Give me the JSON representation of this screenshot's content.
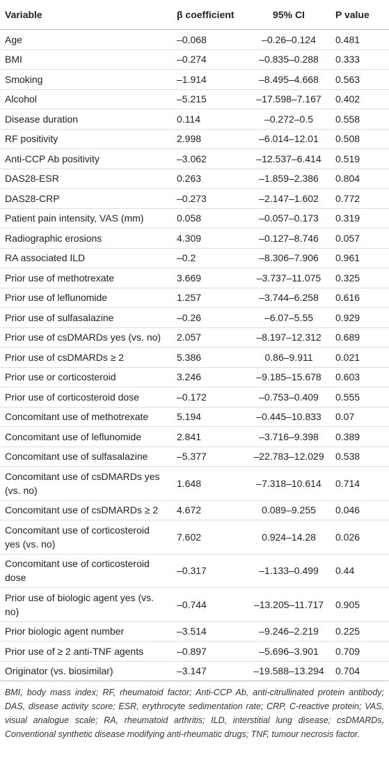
{
  "table": {
    "header": [
      "Variable",
      "β coefficient",
      "95% CI",
      "P value"
    ],
    "rows": [
      [
        "Age",
        "–0.068",
        "–0.26–0.124",
        "0.481"
      ],
      [
        "BMI",
        "–0.274",
        "–0.835–0.288",
        "0.333"
      ],
      [
        "Smoking",
        "–1.914",
        "–8.495–4.668",
        "0.563"
      ],
      [
        "Alcohol",
        "–5.215",
        "–17.598–7.167",
        "0.402"
      ],
      [
        "Disease duration",
        "0.114",
        "–0.272–0.5",
        "0.558"
      ],
      [
        "RF positivity",
        "2.998",
        "–6.014–12.01",
        "0.508"
      ],
      [
        "Anti-CCP Ab positivity",
        "–3.062",
        "–12.537–6.414",
        "0.519"
      ],
      [
        "DAS28-ESR",
        "0.263",
        "–1.859–2.386",
        "0.804"
      ],
      [
        "DAS28-CRP",
        "–0.273",
        "–2.147–1.602",
        "0.772"
      ],
      [
        "Patient pain intensity, VAS (mm)",
        "0.058",
        "–0.057–0.173",
        "0.319"
      ],
      [
        "Radiographic erosions",
        "4.309",
        "–0.127–8.746",
        "0.057"
      ],
      [
        "RA associated ILD",
        "–0.2",
        "–8.306–7.906",
        "0.961"
      ],
      [
        "Prior use of methotrexate",
        "3.669",
        "–3.737–11.075",
        "0.325"
      ],
      [
        "Prior use of leflunomide",
        "1.257",
        "–3.744–6.258",
        "0.616"
      ],
      [
        "Prior use of sulfasalazine",
        "–0.26",
        "–6.07–5.55",
        "0.929"
      ],
      [
        "Prior use of csDMARDs yes (vs. no)",
        "2.057",
        "–8.197–12.312",
        "0.689"
      ],
      [
        "Prior use of csDMARDs ≥ 2",
        "5.386",
        "0.86–9.911",
        "0.021"
      ],
      [
        "Prior use or corticosteroid",
        "3.246",
        "–9.185–15.678",
        "0.603"
      ],
      [
        "Prior use of corticosteroid dose",
        "–0.172",
        "–0.753–0.409",
        "0.555"
      ],
      [
        "Concomitant use of methotrexate",
        "5.194",
        "–0.445–10.833",
        "0.07"
      ],
      [
        "Concomitant use of leflunomide",
        "2.841",
        "–3.716–9.398",
        "0.389"
      ],
      [
        "Concomitant use of sulfasalazine",
        "–5.377",
        "–22.783–12.029",
        "0.538"
      ],
      [
        "Concomitant use of csDMARDs yes (vs. no)",
        "1.648",
        "–7.318–10.614",
        "0.714"
      ],
      [
        "Concomitant use of csDMARDs ≥ 2",
        "4.672",
        "0.089–9.255",
        "0.046"
      ],
      [
        "Concomitant use of corticosteroid yes (vs. no)",
        "7.602",
        "0.924–14.28",
        "0.026"
      ],
      [
        "Concomitant use of corticosteroid dose",
        "–0.317",
        "–1.133–0.499",
        "0.44"
      ],
      [
        "Prior use of biologic agent yes (vs. no)",
        "–0.744",
        "–13.205–11.717",
        "0.905"
      ],
      [
        "Prior biologic agent number",
        "–3.514",
        "–9.246–2.219",
        "0.225"
      ],
      [
        "Prior use of ≥ 2 anti-TNF agents",
        "–0.897",
        "–5.696–3.901",
        "0.709"
      ],
      [
        "Originator (vs. biosimilar)",
        "–3.147",
        "–19.588–13.294",
        "0.704"
      ]
    ],
    "footnote": "BMI, body mass index; RF, rheumatoid factor; Anti-CCP Ab, anti-citrullinated protein antibody; DAS, disease activity score; ESR, erythrocyte sedimentation rate; CRP, C-reactive protein; VAS, visual analogue scale; RA, rheumatoid arthritis; ILD, interstitial lung disease; csDMARDs, Conventional synthetic disease modifying anti-rheumatic drugs; TNF, tumour necrosis factor."
  }
}
